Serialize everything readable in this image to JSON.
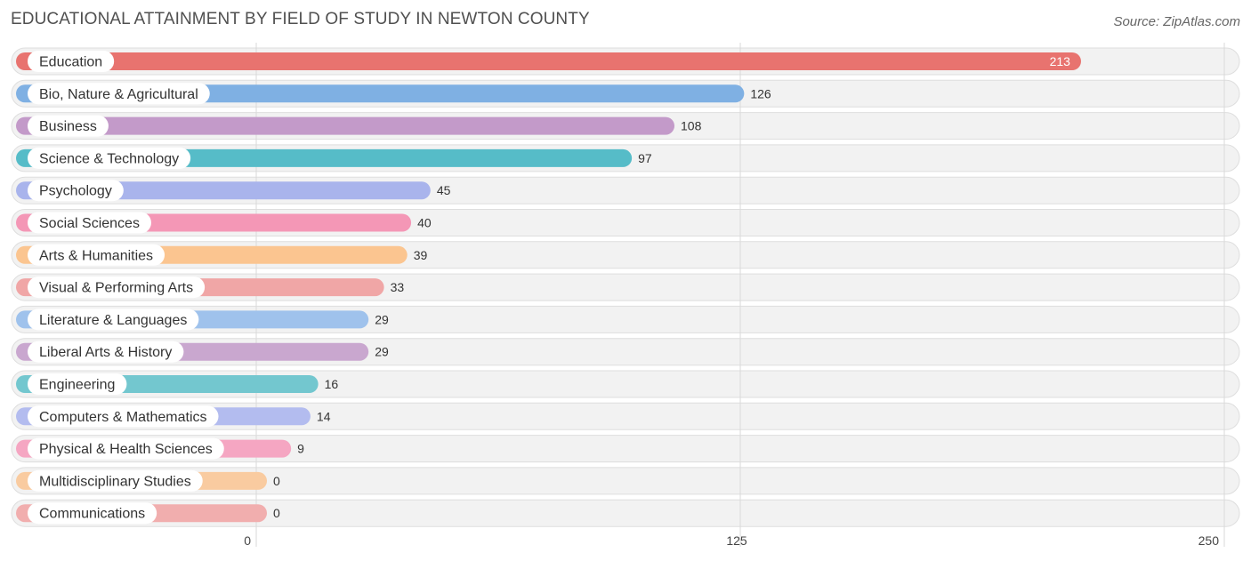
{
  "title": "EDUCATIONAL ATTAINMENT BY FIELD OF STUDY IN NEWTON COUNTY",
  "source": "Source: ZipAtlas.com",
  "chart_data": {
    "type": "bar",
    "orientation": "horizontal",
    "title": "EDUCATIONAL ATTAINMENT BY FIELD OF STUDY IN NEWTON COUNTY",
    "categories": [
      "Education",
      "Bio, Nature & Agricultural",
      "Business",
      "Science & Technology",
      "Psychology",
      "Social Sciences",
      "Arts & Humanities",
      "Visual & Performing Arts",
      "Literature & Languages",
      "Liberal Arts & History",
      "Engineering",
      "Computers & Mathematics",
      "Physical & Health Sciences",
      "Multidisciplinary Studies",
      "Communications"
    ],
    "values": [
      213,
      126,
      108,
      97,
      45,
      40,
      39,
      33,
      29,
      29,
      16,
      14,
      9,
      0,
      0
    ],
    "colors": [
      "#e8736f",
      "#7fb0e3",
      "#c39ac9",
      "#56bcc8",
      "#a9b4ec",
      "#f497b6",
      "#fbc590",
      "#f0a6a6",
      "#9fc2ec",
      "#c9a7cf",
      "#73c7cf",
      "#b3bcef",
      "#f5a6c2",
      "#f9cba0",
      "#f1aeae"
    ],
    "xlim": [
      0,
      250
    ],
    "xticks": [
      "0",
      "125",
      "250"
    ],
    "grid": true
  }
}
